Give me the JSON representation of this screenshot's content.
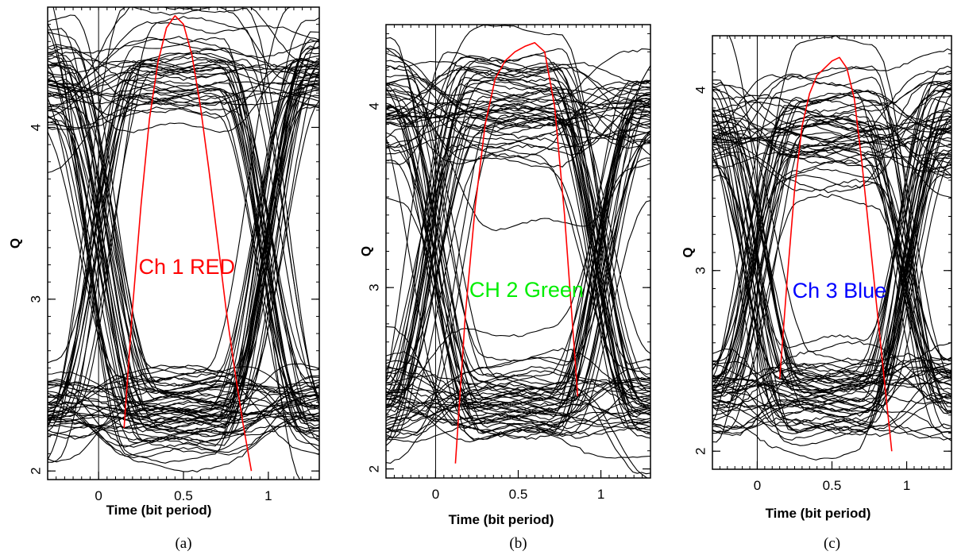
{
  "chart_data": [
    {
      "type": "line",
      "panel_label": "(a)",
      "xlabel": "Time (bit period)",
      "ylabel": "Q",
      "xlim": [
        -0.3,
        1.3
      ],
      "ylim": [
        1.95,
        4.7
      ],
      "xticks": [
        0,
        0.5,
        1
      ],
      "xtick_labels": [
        "0",
        "0.5",
        "1"
      ],
      "yticks": [
        2,
        3,
        4
      ],
      "ytick_labels": [
        "2",
        "3",
        "4"
      ],
      "annotation": {
        "text": "Ch 1 RED",
        "color": "#ff0000",
        "x": 0.52,
        "y": 3.18
      },
      "eye_traces": {
        "color": "#000000",
        "count": 100,
        "zero_level": 2.35,
        "one_level": 4.3,
        "crossings": [
          0,
          1
        ]
      },
      "envelope": {
        "color": "#ff0000",
        "x": [
          0.15,
          0.2,
          0.25,
          0.3,
          0.35,
          0.4,
          0.45,
          0.5,
          0.55,
          0.6,
          0.65,
          0.7,
          0.75,
          0.8,
          0.85,
          0.9
        ],
        "y": [
          2.25,
          2.95,
          3.55,
          4.05,
          4.38,
          4.58,
          4.65,
          4.6,
          4.42,
          4.12,
          3.75,
          3.35,
          2.95,
          2.6,
          2.28,
          2.0
        ]
      }
    },
    {
      "type": "line",
      "panel_label": "(b)",
      "xlabel": "Time (bit period)",
      "ylabel": "Q",
      "xlim": [
        -0.3,
        1.3
      ],
      "ylim": [
        1.95,
        4.45
      ],
      "xticks": [
        0,
        0.5,
        1
      ],
      "xtick_labels": [
        "0",
        "0.5",
        "1"
      ],
      "yticks": [
        2,
        3,
        4
      ],
      "ytick_labels": [
        "2",
        "3",
        "4"
      ],
      "annotation": {
        "text": "CH 2 Green",
        "color": "#00ee00",
        "x": 0.55,
        "y": 2.98
      },
      "eye_traces": {
        "color": "#000000",
        "count": 100,
        "zero_level": 2.35,
        "one_level": 4.0,
        "crossings": [
          0,
          1
        ]
      },
      "envelope": {
        "color": "#ff0000",
        "x": [
          0.12,
          0.18,
          0.24,
          0.3,
          0.36,
          0.42,
          0.48,
          0.54,
          0.6,
          0.66,
          0.72,
          0.78,
          0.82,
          0.86
        ],
        "y": [
          2.03,
          2.85,
          3.45,
          3.9,
          4.15,
          4.25,
          4.3,
          4.33,
          4.35,
          4.3,
          4.0,
          3.4,
          2.9,
          2.4
        ]
      }
    },
    {
      "type": "line",
      "panel_label": "(c)",
      "xlabel": "Time (bit period)",
      "ylabel": "Q",
      "xlim": [
        -0.3,
        1.3
      ],
      "ylim": [
        1.9,
        4.3
      ],
      "xticks": [
        0,
        0.5,
        1
      ],
      "xtick_labels": [
        "0",
        "0.5",
        "1"
      ],
      "yticks": [
        2,
        3,
        4
      ],
      "ytick_labels": [
        "2",
        "3",
        "4"
      ],
      "annotation": {
        "text": "Ch 3 Blue",
        "color": "#0000ff",
        "x": 0.55,
        "y": 2.88
      },
      "eye_traces": {
        "color": "#000000",
        "count": 100,
        "zero_level": 2.3,
        "one_level": 3.8,
        "crossings": [
          0,
          1
        ]
      },
      "envelope": {
        "color": "#ff0000",
        "x": [
          0.15,
          0.2,
          0.25,
          0.3,
          0.35,
          0.4,
          0.45,
          0.5,
          0.55,
          0.6,
          0.65,
          0.7,
          0.75,
          0.8,
          0.85,
          0.9
        ],
        "y": [
          2.4,
          2.95,
          3.45,
          3.8,
          3.98,
          4.08,
          4.12,
          4.16,
          4.18,
          4.12,
          3.95,
          3.6,
          3.2,
          2.8,
          2.4,
          2.0
        ]
      }
    }
  ]
}
